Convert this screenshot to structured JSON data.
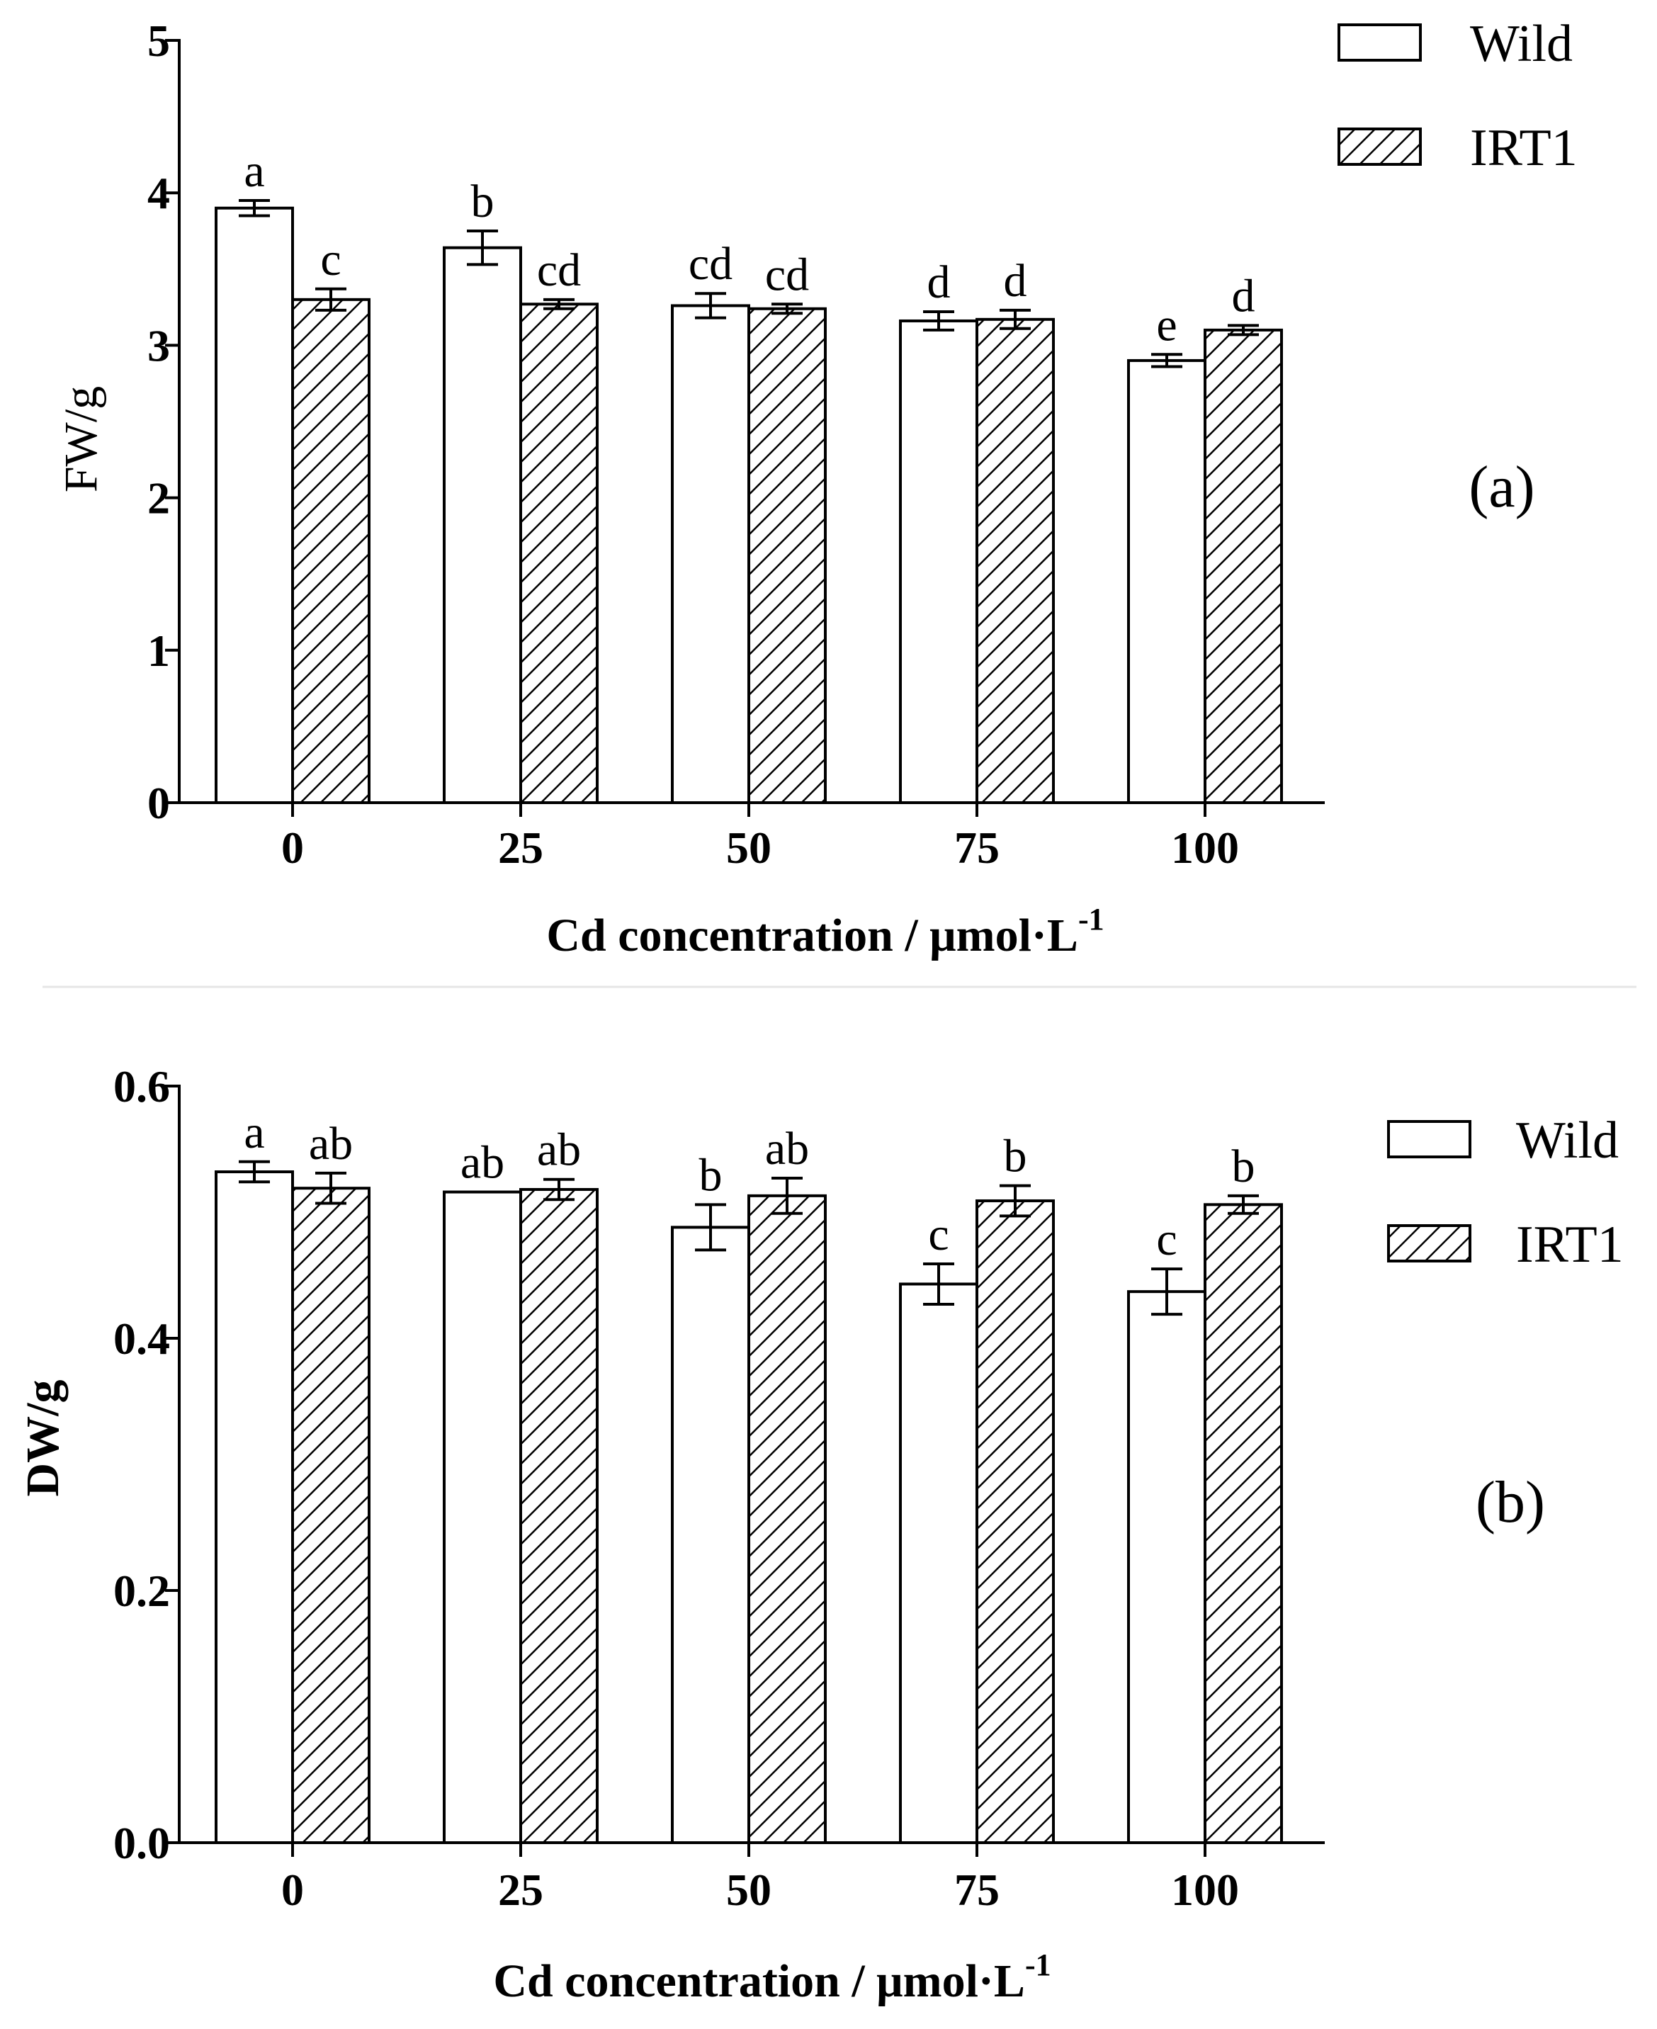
{
  "chart_data": [
    {
      "type": "bar",
      "panel_label": "(a)",
      "categories": [
        "0",
        "25",
        "50",
        "75",
        "100"
      ],
      "series": [
        {
          "name": "Wild",
          "pattern": "open",
          "values": [
            3.9,
            3.64,
            3.26,
            3.16,
            2.9
          ],
          "errors": [
            0.05,
            0.11,
            0.08,
            0.06,
            0.04
          ],
          "letters": [
            "a",
            "b",
            "cd",
            "d",
            "e"
          ]
        },
        {
          "name": "IRT1",
          "pattern": "hatched",
          "values": [
            3.3,
            3.27,
            3.24,
            3.17,
            3.1
          ],
          "errors": [
            0.07,
            0.03,
            0.03,
            0.06,
            0.03
          ],
          "letters": [
            "c",
            "cd",
            "cd",
            "d",
            "d"
          ]
        }
      ],
      "ylim": [
        0,
        5
      ],
      "yticks": [
        "0",
        "1",
        "2",
        "3",
        "4",
        "5"
      ],
      "ytick_values": [
        0,
        1,
        2,
        3,
        4,
        5
      ],
      "ylabel": "FW/g",
      "xlabel": "Cd concentration / μmol·L",
      "xlabel_sup": "-1",
      "legend_position": "top-right"
    },
    {
      "type": "bar",
      "panel_label": "(b)",
      "categories": [
        "0",
        "25",
        "50",
        "75",
        "100"
      ],
      "series": [
        {
          "name": "Wild",
          "pattern": "open",
          "values": [
            0.532,
            0.516,
            0.488,
            0.443,
            0.437
          ],
          "errors": [
            0.008,
            0.0,
            0.018,
            0.016,
            0.018
          ],
          "letters": [
            "a",
            "ab",
            "b",
            "c",
            "c"
          ]
        },
        {
          "name": "IRT1",
          "pattern": "hatched",
          "values": [
            0.519,
            0.518,
            0.513,
            0.509,
            0.506
          ],
          "errors": [
            0.012,
            0.008,
            0.014,
            0.012,
            0.007
          ],
          "letters": [
            "ab",
            "ab",
            "ab",
            "b",
            "b"
          ]
        }
      ],
      "ylim": [
        0,
        0.6
      ],
      "yticks": [
        "0.0",
        "0.2",
        "0.4",
        "0.6"
      ],
      "ytick_values": [
        0,
        0.2,
        0.4,
        0.6
      ],
      "ylabel": "DW/g",
      "xlabel": "Cd concentration / μmol·L",
      "xlabel_sup": "-1",
      "legend_position": "right"
    }
  ]
}
